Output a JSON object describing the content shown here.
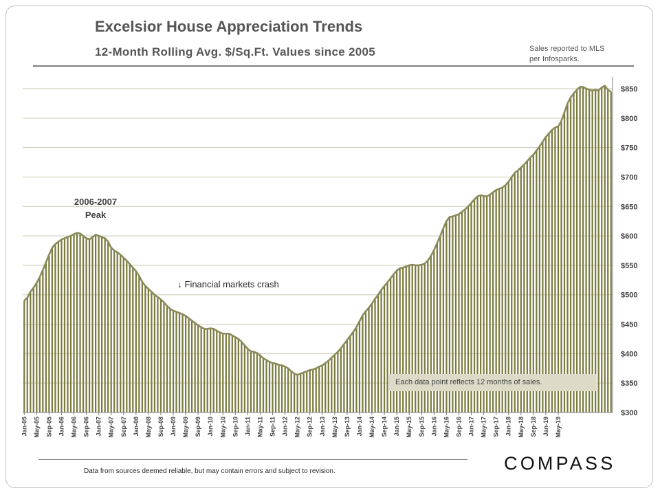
{
  "header": {
    "title": "Excelsior House Appreciation Trends",
    "subtitle": "12-Month Rolling Avg. $/Sq.Ft. Values since 2005",
    "source_line1": "Sales reported to MLS",
    "source_line2": "per Infosparks."
  },
  "annotations": {
    "peak_line1": "2006-2007",
    "peak_line2": "Peak",
    "crash_arrow": "↓",
    "crash_label": "Financial markets crash",
    "note": "Each  data point reflects 12 months of sales."
  },
  "footer": {
    "disclaimer": "Data from sources deemed reliable, but may contain errors and subject to revision.",
    "logo": "COMPASS"
  },
  "colors": {
    "bar": "#7b7b40",
    "line": "#8a8a5a",
    "grid": "#c8c8b0"
  },
  "chart_data": {
    "type": "bar",
    "title": "Excelsior House Appreciation Trends",
    "subtitle": "12-Month Rolling Avg. $/Sq.Ft. Values since 2005",
    "xlabel": "",
    "ylabel": "",
    "ylim": [
      300,
      850
    ],
    "y_ticks": [
      "$850",
      "$800",
      "$750",
      "$700",
      "$650",
      "$600",
      "$550",
      "$500",
      "$450",
      "$400",
      "$350",
      "$300"
    ],
    "y_tick_values": [
      850,
      800,
      750,
      700,
      650,
      600,
      550,
      500,
      450,
      400,
      350,
      300
    ],
    "grid": "horizontal",
    "x_tick_labels": [
      "Jan-05",
      "May-05",
      "Sep-05",
      "Jan-06",
      "May-06",
      "Sep-06",
      "Jan-07",
      "May-07",
      "Sep-07",
      "Jan-08",
      "May-08",
      "Sep-08",
      "Jan-09",
      "May-09",
      "Sep-09",
      "Jan-10",
      "May-10",
      "Sep-10",
      "Jan-11",
      "May-11",
      "Sep-11",
      "Jan-12",
      "May-12",
      "Sep-12",
      "Jan-13",
      "May-13",
      "Sep-13",
      "Jan-14",
      "May-14",
      "Sep-14",
      "Jan-15",
      "May-15",
      "Sep-15",
      "Jan-16",
      "May-16",
      "Sep-16",
      "Jan-17",
      "May-17",
      "Sep-17",
      "Jan-18",
      "May-18",
      "Sep-18",
      "Jan-19",
      "May-19"
    ],
    "series": [
      {
        "values": [
          490,
          495,
          505,
          512,
          520,
          530,
          542,
          555,
          568,
          580,
          586,
          590,
          594,
          596,
          598,
          600,
          603,
          605,
          604,
          600,
          596,
          594,
          598,
          602,
          600,
          598,
          596,
          590,
          580,
          575,
          572,
          568,
          563,
          558,
          552,
          546,
          540,
          532,
          522,
          515,
          510,
          505,
          500,
          496,
          492,
          487,
          481,
          476,
          473,
          471,
          469,
          467,
          464,
          460,
          456,
          452,
          448,
          445,
          442,
          442,
          443,
          442,
          439,
          436,
          434,
          434,
          434,
          431,
          428,
          425,
          420,
          414,
          408,
          404,
          403,
          401,
          397,
          392,
          389,
          386,
          384,
          383,
          381,
          380,
          378,
          375,
          370,
          366,
          364,
          366,
          368,
          370,
          372,
          373,
          375,
          378,
          380,
          384,
          388,
          393,
          398,
          403,
          409,
          416,
          423,
          430,
          437,
          445,
          455,
          465,
          472,
          478,
          485,
          493,
          500,
          508,
          515,
          521,
          528,
          535,
          541,
          545,
          546,
          548,
          550,
          551,
          550,
          550,
          551,
          553,
          558,
          566,
          576,
          588,
          600,
          613,
          625,
          632,
          633,
          635,
          637,
          641,
          645,
          650,
          656,
          662,
          667,
          669,
          668,
          667,
          670,
          674,
          678,
          680,
          682,
          686,
          692,
          700,
          707,
          711,
          716,
          721,
          727,
          733,
          738,
          745,
          752,
          760,
          768,
          774,
          780,
          784,
          786,
          795,
          810,
          825,
          835,
          842,
          848,
          853,
          853,
          850,
          848,
          847,
          848,
          847,
          852,
          855,
          848,
          845
        ]
      }
    ]
  }
}
